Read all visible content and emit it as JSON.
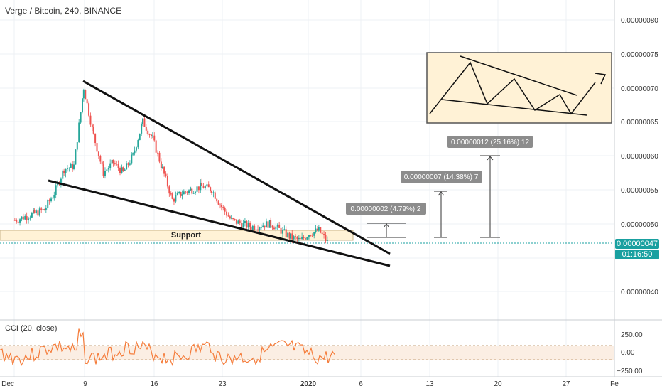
{
  "header": {
    "symbol_title": "Verge / Bitcoin, 240, BINANCE"
  },
  "cci": {
    "label": "CCI (20, close)",
    "ticks": [
      "250.00",
      "0.00",
      "−250.00"
    ]
  },
  "price_badge": {
    "value": "0.00000047",
    "timer": "01:16:50"
  },
  "annotations": {
    "support": "Support",
    "measure_1": "0.00000002 (4.79%) 2",
    "measure_2": "0.00000007 (14.38%) 7",
    "measure_3": "0.00000012 (25.16%) 12"
  },
  "colors": {
    "up": "#26a69a",
    "down": "#ef5350",
    "cci_line": "#f57c3a",
    "support_fill": "#fff2d6",
    "price_line": "#19a0a0",
    "label_bg": "#8c8c8c"
  },
  "chart_data": {
    "type": "candlestick",
    "title": "Verge / Bitcoin, 240, BINANCE",
    "x_ticks": [
      "Dec",
      "9",
      "16",
      "23",
      "2020",
      "6",
      "13",
      "20",
      "27",
      "Fe"
    ],
    "y_ticks": [
      "0.00000080",
      "0.00000075",
      "0.00000070",
      "0.00000065",
      "0.00000060",
      "0.00000055",
      "0.00000050",
      "0.00000040"
    ],
    "ylim": [
      3.6e-07,
      8.3e-07
    ],
    "last_price": 4.7e-07,
    "close_path": [
      {
        "x": "Dec 2",
        "y": 5.05e-07
      },
      {
        "x": "Dec 4",
        "y": 5.15e-07
      },
      {
        "x": "Dec 5",
        "y": 5.2e-07
      },
      {
        "x": "Dec 6",
        "y": 5.45e-07
      },
      {
        "x": "Dec 7",
        "y": 5.8e-07
      },
      {
        "x": "Dec 8",
        "y": 5.85e-07
      },
      {
        "x": "Dec 9",
        "y": 7e-07
      },
      {
        "x": "Dec 10",
        "y": 6.3e-07
      },
      {
        "x": "Dec 11",
        "y": 5.75e-07
      },
      {
        "x": "Dec 12",
        "y": 5.9e-07
      },
      {
        "x": "Dec 13",
        "y": 5.75e-07
      },
      {
        "x": "Dec 14",
        "y": 6e-07
      },
      {
        "x": "Dec 15",
        "y": 6.5e-07
      },
      {
        "x": "Dec 16",
        "y": 6.25e-07
      },
      {
        "x": "Dec 17",
        "y": 5.8e-07
      },
      {
        "x": "Dec 18",
        "y": 5.35e-07
      },
      {
        "x": "Dec 19",
        "y": 5.45e-07
      },
      {
        "x": "Dec 20",
        "y": 5.5e-07
      },
      {
        "x": "Dec 21",
        "y": 5.55e-07
      },
      {
        "x": "Dec 22",
        "y": 5.5e-07
      },
      {
        "x": "Dec 23",
        "y": 5.25e-07
      },
      {
        "x": "Dec 24",
        "y": 5.05e-07
      },
      {
        "x": "Dec 26",
        "y": 4.95e-07
      },
      {
        "x": "Dec 28",
        "y": 5e-07
      },
      {
        "x": "Dec 30",
        "y": 4.8e-07
      },
      {
        "x": "Dec 31",
        "y": 4.75e-07
      },
      {
        "x": "Jan 1",
        "y": 4.85e-07
      },
      {
        "x": "Jan 2",
        "y": 4.9e-07
      },
      {
        "x": "Jan 3",
        "y": 4.7e-07
      }
    ],
    "pattern": "falling wedge"
  }
}
